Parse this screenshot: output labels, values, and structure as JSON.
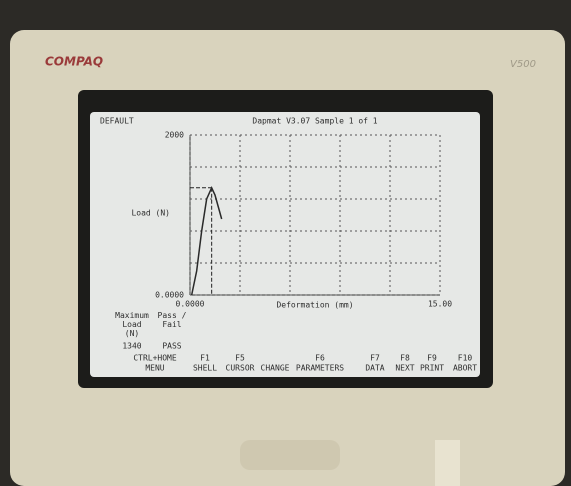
{
  "brand": "COMPAQ",
  "model": "V500",
  "screen": {
    "profile": "DEFAULT",
    "header": "Dapmat V3.07 Sample  1 of  1"
  },
  "chart_data": {
    "type": "line",
    "y_label": "Load (N)",
    "x_label": "Deformation (mm)",
    "xlim": [
      0,
      15
    ],
    "ylim": [
      0,
      2000
    ],
    "xticks": [
      {
        "value": 0,
        "label": "0.0000"
      },
      {
        "value": 15,
        "label": "15.00"
      }
    ],
    "yticks": [
      {
        "value": 0,
        "label": "0.0000"
      },
      2000
    ],
    "xgrid": [
      3,
      6,
      9,
      12
    ],
    "ygrid": [
      400,
      800,
      1200,
      1600
    ],
    "grid": true,
    "series": [
      {
        "color": "#2a2a2a",
        "x": [
          0.1,
          0.4,
          0.7,
          1.0,
          1.3,
          1.5,
          1.7,
          1.9
        ],
        "values": [
          0,
          300,
          800,
          1200,
          1340,
          1250,
          1100,
          950
        ]
      }
    ]
  },
  "results": {
    "headers": [
      "Maximum Load (N)",
      "Pass / Fail"
    ],
    "row": [
      "1340",
      "PASS"
    ]
  },
  "function_keys": [
    {
      "key": "CTRL+HOME",
      "label": "MENU"
    },
    {
      "key": "F1",
      "label": "SHELL"
    },
    {
      "key": "F5",
      "label": "CURSOR"
    },
    {
      "label": "CHANGE"
    },
    {
      "key": "F6",
      "label": "PARAMETERS"
    },
    {
      "key": "F7",
      "label": "DATA"
    },
    {
      "key": "F8",
      "label": "NEXT"
    },
    {
      "key": "F9",
      "label": "PRINT"
    },
    {
      "key": "F10",
      "label": "ABORT"
    }
  ]
}
